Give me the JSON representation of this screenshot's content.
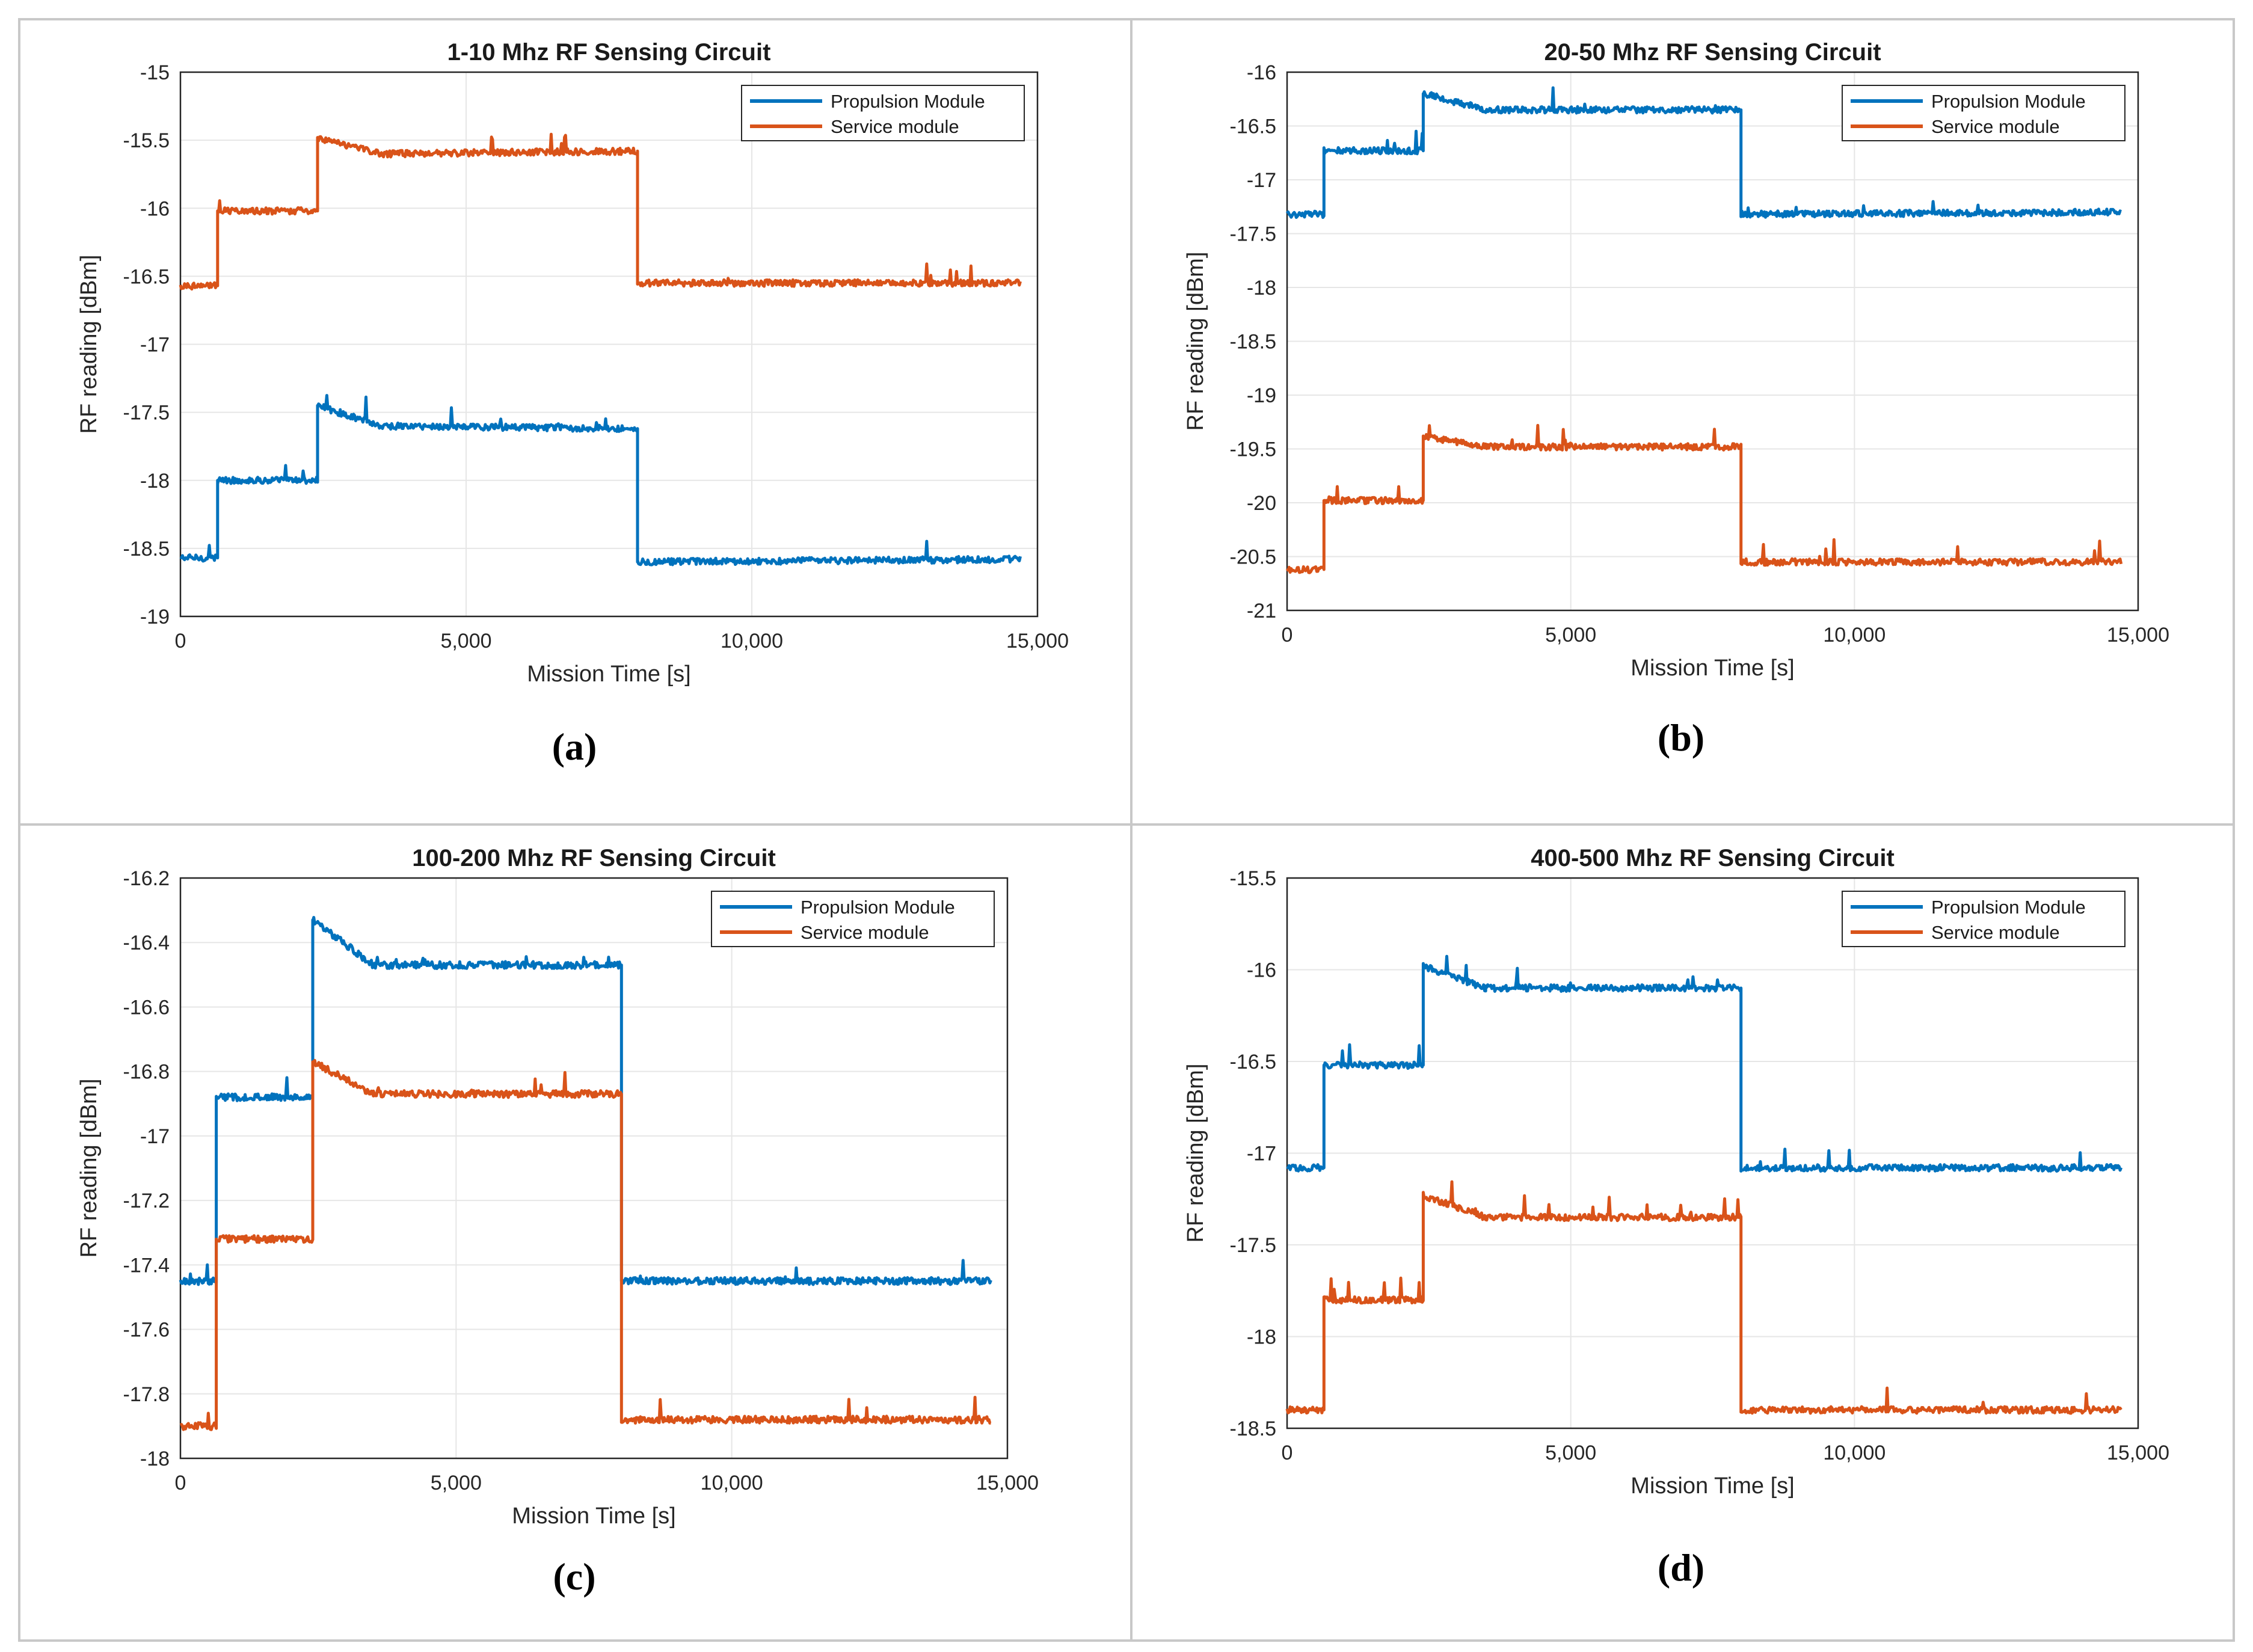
{
  "figure": {
    "xlabel": "Mission Time [s]",
    "ylabel": "RF reading [dBm]",
    "colors": {
      "propulsion": "#0072BD",
      "service": "#D95319",
      "grid": "#e6e6e6"
    }
  },
  "chart_data": [
    {
      "type": "line",
      "caption": "(a)",
      "title": "1-10 Mhz RF Sensing Circuit",
      "xlabel": "Mission Time [s]",
      "ylabel": "RF reading [dBm]",
      "xlim": [
        0,
        15000
      ],
      "ylim": [
        -19,
        -15
      ],
      "xticks": [
        0,
        5000,
        10000,
        15000
      ],
      "xtick_labels": [
        "0",
        "5,000",
        "10,000",
        "15,000"
      ],
      "yticks": [
        -19,
        -18.5,
        -18,
        -17.5,
        -17,
        -16.5,
        -16,
        -15.5,
        -15
      ],
      "ytick_labels": [
        "-19",
        "-18.5",
        "-18",
        "-17.5",
        "-17",
        "-16.5",
        "-16",
        "-15.5",
        "-15"
      ],
      "legend": {
        "placement": "top-right",
        "entries": [
          "Propulsion Module",
          "Service module"
        ]
      },
      "series": [
        {
          "name": "Propulsion Module",
          "color": "#0072BD",
          "x": [
            0,
            650,
            650,
            2400,
            2400,
            3500,
            8000,
            8000,
            14700
          ],
          "y": [
            -18.57,
            -18.57,
            -18.0,
            -18.0,
            -17.45,
            -17.6,
            -17.62,
            -18.6,
            -18.58
          ]
        },
        {
          "name": "Service module",
          "color": "#D95319",
          "x": [
            0,
            650,
            650,
            2400,
            2400,
            3500,
            8000,
            8000,
            14700
          ],
          "y": [
            -16.57,
            -16.57,
            -16.02,
            -16.02,
            -15.48,
            -15.6,
            -15.58,
            -16.55,
            -16.55
          ]
        }
      ]
    },
    {
      "type": "line",
      "caption": "(b)",
      "title": "20-50 Mhz RF Sensing Circuit",
      "xlabel": "Mission Time [s]",
      "ylabel": "RF reading [dBm]",
      "xlim": [
        0,
        15000
      ],
      "ylim": [
        -21,
        -16
      ],
      "xticks": [
        0,
        5000,
        10000,
        15000
      ],
      "xtick_labels": [
        "0",
        "5,000",
        "10,000",
        "15,000"
      ],
      "yticks": [
        -21,
        -20.5,
        -20,
        -19.5,
        -19,
        -18.5,
        -18,
        -17.5,
        -17,
        -16.5,
        -16
      ],
      "ytick_labels": [
        "-21",
        "-20.5",
        "-20",
        "-19.5",
        "-19",
        "-18.5",
        "-18",
        "-17.5",
        "-17",
        "-16.5",
        "-16"
      ],
      "legend": {
        "placement": "top-right",
        "entries": [
          "Propulsion Module",
          "Service module"
        ]
      },
      "series": [
        {
          "name": "Propulsion Module",
          "color": "#0072BD",
          "x": [
            0,
            650,
            650,
            2400,
            2400,
            3500,
            8000,
            8000,
            14700
          ],
          "y": [
            -17.32,
            -17.32,
            -16.73,
            -16.73,
            -16.2,
            -16.35,
            -16.35,
            -17.32,
            -17.3
          ]
        },
        {
          "name": "Service module",
          "color": "#D95319",
          "x": [
            0,
            650,
            650,
            2400,
            2400,
            3500,
            8000,
            8000,
            14700
          ],
          "y": [
            -20.62,
            -20.62,
            -19.98,
            -19.98,
            -19.38,
            -19.48,
            -19.48,
            -20.55,
            -20.55
          ]
        }
      ]
    },
    {
      "type": "line",
      "caption": "(c)",
      "title": "100-200 Mhz RF Sensing Circuit",
      "xlabel": "Mission Time [s]",
      "ylabel": "RF reading [dBm]",
      "xlim": [
        0,
        15000
      ],
      "ylim": [
        -18,
        -16.2
      ],
      "xticks": [
        0,
        5000,
        10000,
        15000
      ],
      "xtick_labels": [
        "0",
        "5,000",
        "10,000",
        "15,000"
      ],
      "yticks": [
        -18,
        -17.8,
        -17.6,
        -17.4,
        -17.2,
        -17,
        -16.8,
        -16.6,
        -16.4,
        -16.2
      ],
      "ytick_labels": [
        "-18",
        "-17.8",
        "-17.6",
        "-17.4",
        "-17.2",
        "-17",
        "-16.8",
        "-16.6",
        "-16.4",
        "-16.2"
      ],
      "legend": {
        "placement": "top-right",
        "entries": [
          "Propulsion Module",
          "Service module"
        ]
      },
      "series": [
        {
          "name": "Propulsion Module",
          "color": "#0072BD",
          "x": [
            0,
            650,
            650,
            2400,
            2400,
            3500,
            8000,
            8000,
            14700
          ],
          "y": [
            -17.45,
            -17.45,
            -16.88,
            -16.88,
            -16.33,
            -16.47,
            -16.47,
            -17.45,
            -17.45
          ]
        },
        {
          "name": "Service module",
          "color": "#D95319",
          "x": [
            0,
            650,
            650,
            2400,
            2400,
            3500,
            8000,
            8000,
            14700
          ],
          "y": [
            -17.9,
            -17.9,
            -17.32,
            -17.32,
            -16.77,
            -16.87,
            -16.87,
            -17.88,
            -17.88
          ]
        }
      ]
    },
    {
      "type": "line",
      "caption": "(d)",
      "title": "400-500 Mhz RF Sensing Circuit",
      "xlabel": "Mission Time [s]",
      "ylabel": "RF reading [dBm]",
      "xlim": [
        0,
        15000
      ],
      "ylim": [
        -18.5,
        -15.5
      ],
      "xticks": [
        0,
        5000,
        10000,
        15000
      ],
      "xtick_labels": [
        "0",
        "5,000",
        "10,000",
        "15,000"
      ],
      "yticks": [
        -18.5,
        -18,
        -17.5,
        -17,
        -16.5,
        -16,
        -15.5
      ],
      "ytick_labels": [
        "-18.5",
        "-18",
        "-17.5",
        "-17",
        "-16.5",
        "-16",
        "-15.5"
      ],
      "legend": {
        "placement": "top-right",
        "entries": [
          "Propulsion Module",
          "Service module"
        ]
      },
      "series": [
        {
          "name": "Propulsion Module",
          "color": "#0072BD",
          "x": [
            0,
            650,
            650,
            2400,
            2400,
            3500,
            8000,
            8000,
            14700
          ],
          "y": [
            -17.08,
            -17.08,
            -16.52,
            -16.52,
            -15.98,
            -16.1,
            -16.1,
            -17.08,
            -17.08
          ]
        },
        {
          "name": "Service module",
          "color": "#D95319",
          "x": [
            0,
            650,
            650,
            2400,
            2400,
            3500,
            8000,
            8000,
            14700
          ],
          "y": [
            -18.4,
            -18.4,
            -17.8,
            -17.8,
            -17.23,
            -17.35,
            -17.35,
            -18.4,
            -18.4
          ]
        }
      ]
    }
  ]
}
